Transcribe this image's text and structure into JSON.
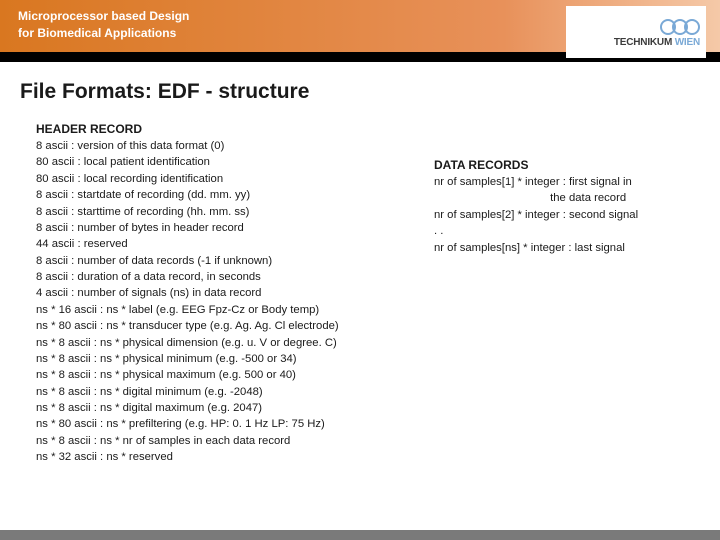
{
  "header": {
    "line1": "Microprocessor based Design",
    "line2": "for Biomedical Applications",
    "logo_main": "TECHNIKUM",
    "logo_sub": "WIEN"
  },
  "title": "File Formats: EDF - structure",
  "left": {
    "heading": "HEADER RECORD",
    "lines": [
      "8 ascii : version of this data format (0)",
      "80 ascii : local patient identification",
      "80 ascii : local recording identification",
      "8 ascii : startdate of recording (dd. mm. yy)",
      "8 ascii : starttime of recording (hh. mm. ss)",
      "8 ascii : number of bytes in header record",
      "44 ascii : reserved",
      "8 ascii : number of data records (-1 if unknown)",
      "8 ascii : duration of a data record, in seconds",
      "4 ascii : number of signals (ns) in data record",
      "ns * 16 ascii : ns * label (e.g. EEG Fpz-Cz or Body temp)",
      "ns * 80 ascii : ns * transducer type (e.g. Ag. Ag. Cl electrode)",
      "ns * 8 ascii : ns * physical dimension (e.g. u. V or degree. C)",
      "ns * 8 ascii : ns * physical minimum (e.g. -500 or 34)",
      "ns * 8 ascii : ns * physical maximum (e.g. 500 or 40)",
      "ns * 8 ascii : ns * digital minimum (e.g. -2048)",
      "ns * 8 ascii : ns * digital maximum (e.g. 2047)",
      "ns * 80 ascii : ns * prefiltering (e.g. HP: 0. 1 Hz LP: 75 Hz)",
      "ns * 8 ascii : ns * nr of samples in each data record",
      "ns * 32 ascii : ns * reserved"
    ]
  },
  "right": {
    "heading": "DATA RECORDS",
    "lines": [
      "nr of samples[1] * integer : first signal in",
      "                                     the data record",
      "nr of samples[2] * integer : second signal",
      ". .",
      "nr of samples[ns] * integer : last signal"
    ]
  },
  "colors": {
    "band_start": "#d97720",
    "band_end": "#f5c9a8",
    "black": "#000000",
    "footer": "#7a7a7a",
    "text": "#1a1a1a"
  }
}
